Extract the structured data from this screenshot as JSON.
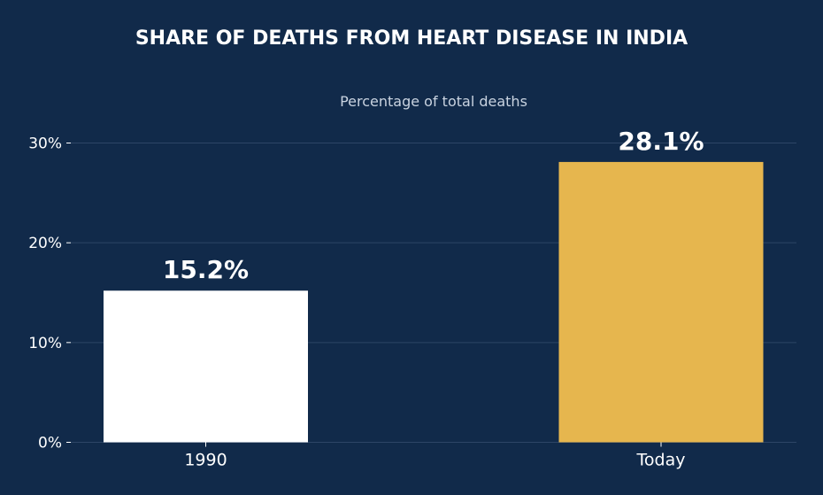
{
  "chart_data": {
    "type": "bar",
    "title": "SHARE OF DEATHS FROM HEART DISEASE IN INDIA",
    "subtitle": "Percentage of total deaths",
    "xlabel": "",
    "ylabel": "",
    "categories": [
      "1990",
      "Today"
    ],
    "values": [
      15.2,
      28.1
    ],
    "data_labels": [
      "15.2%",
      "28.1%"
    ],
    "ylim": [
      0,
      30
    ],
    "yticks": [
      0,
      10,
      20,
      30
    ],
    "ytick_labels": [
      "0%",
      "10%",
      "20%",
      "30%"
    ],
    "grid": true,
    "legend": "none",
    "bar_colors": [
      "#ffffff",
      "#e6b64e"
    ]
  },
  "colors": {
    "background": "#112a4a",
    "gridline": "#2d4566",
    "text": "#ffffff",
    "subtitle": "#c9d3e0"
  }
}
